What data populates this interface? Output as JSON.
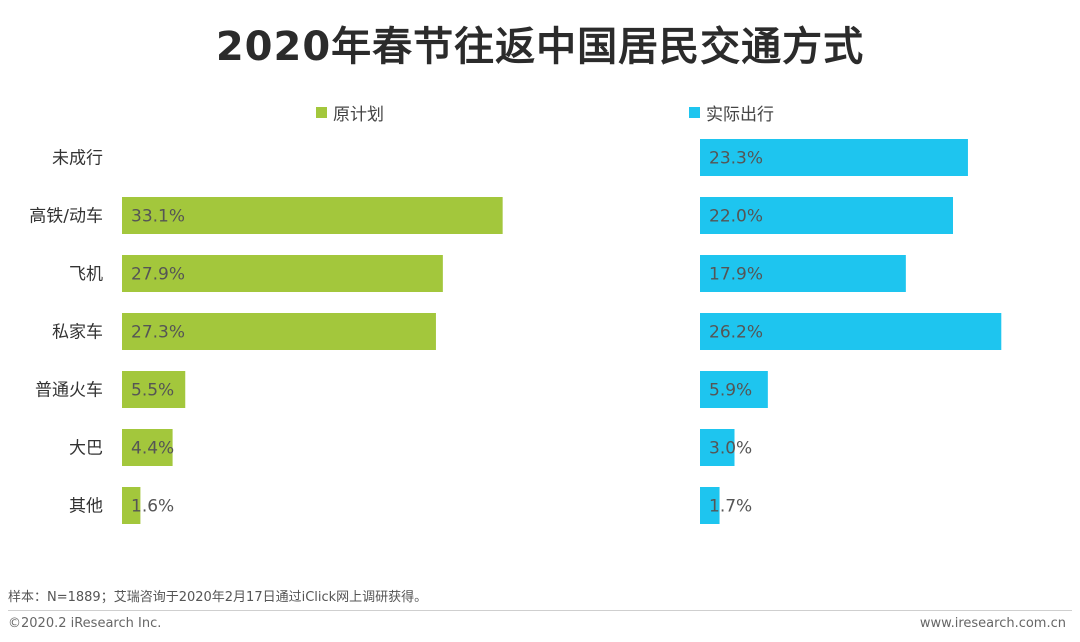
{
  "chart_data": {
    "type": "bar",
    "orientation": "horizontal",
    "title": "2020年春节往返中国居民交通方式",
    "categories": [
      "未成行",
      "高铁/动车",
      "飞机",
      "私家车",
      "普通火车",
      "大巴",
      "其他"
    ],
    "series": [
      {
        "name": "原计划",
        "color": "#a3c73c",
        "values": [
          null,
          33.1,
          27.9,
          27.3,
          5.5,
          4.4,
          1.6
        ],
        "labels": [
          "",
          "33.1%",
          "27.9%",
          "27.3%",
          "5.5%",
          "4.4%",
          "1.6%"
        ]
      },
      {
        "name": "实际出行",
        "color": "#1ec5ef",
        "values": [
          23.3,
          22.0,
          17.9,
          26.2,
          5.9,
          3.0,
          1.7
        ],
        "labels": [
          "23.3%",
          "22.0%",
          "17.9%",
          "26.2%",
          "5.9%",
          "3.0%",
          "1.7%"
        ]
      }
    ],
    "unit": "%"
  },
  "footer": {
    "note": "样本：N=1889；艾瑞咨询于2020年2月17日通过iClick网上调研获得。",
    "copyright": "©2020.2 iResearch Inc.",
    "website": "www.iresearch.com.cn"
  }
}
